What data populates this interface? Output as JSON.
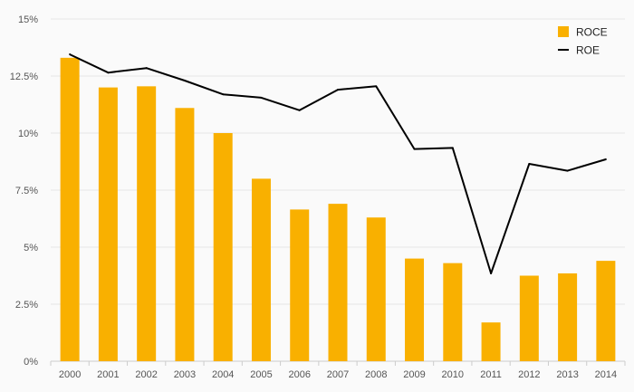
{
  "chart_data": {
    "type": "bar",
    "categories": [
      "2000",
      "2001",
      "2002",
      "2003",
      "2004",
      "2005",
      "2006",
      "2007",
      "2008",
      "2009",
      "2010",
      "2011",
      "2012",
      "2013",
      "2014"
    ],
    "series": [
      {
        "name": "ROCE",
        "type": "bar",
        "color": "#f9b000",
        "values": [
          13.3,
          12.0,
          12.05,
          11.1,
          10.0,
          8.0,
          6.65,
          6.9,
          6.3,
          4.5,
          4.3,
          1.7,
          3.75,
          3.85,
          4.4
        ]
      },
      {
        "name": "ROE",
        "type": "line",
        "color": "#000000",
        "values": [
          13.45,
          12.65,
          12.85,
          12.3,
          11.7,
          11.55,
          11.0,
          11.9,
          12.05,
          9.3,
          9.35,
          3.85,
          8.65,
          8.35,
          8.85
        ]
      }
    ],
    "yticks": [
      "0%",
      "2.5%",
      "5%",
      "7.5%",
      "10%",
      "12.5%",
      "15%"
    ],
    "ytick_values": [
      0,
      2.5,
      5,
      7.5,
      10,
      12.5,
      15
    ],
    "ylim": [
      0,
      15
    ],
    "grid": true,
    "legend_position": "top-right",
    "title": "",
    "xlabel": "",
    "ylabel": ""
  }
}
